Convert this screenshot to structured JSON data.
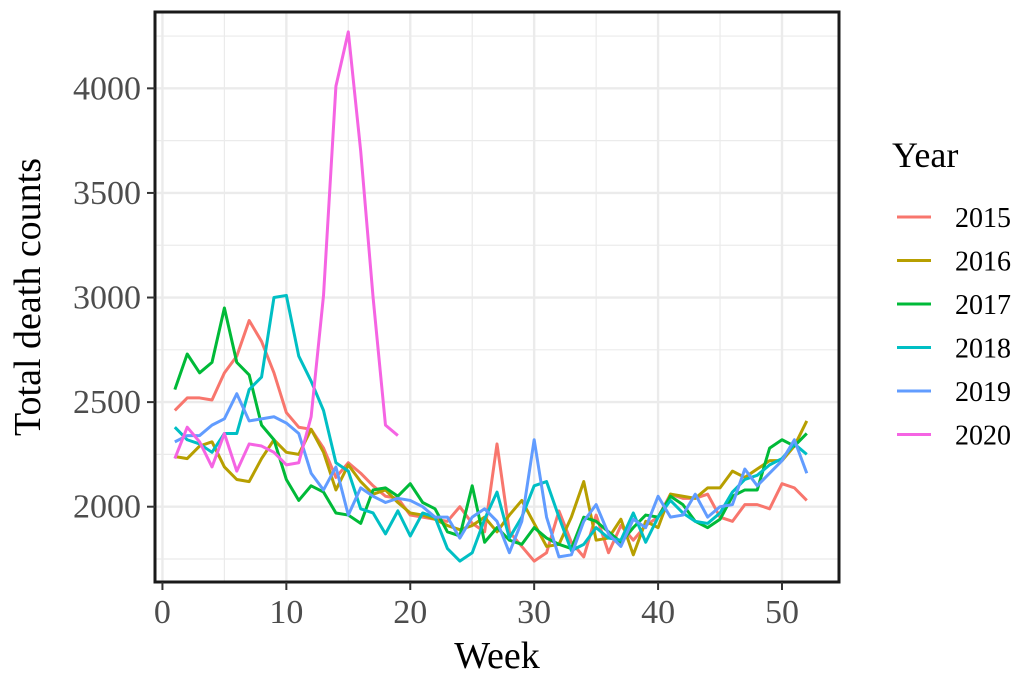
{
  "chart_data": {
    "type": "line",
    "xlabel": "Week",
    "ylabel": "Total death counts",
    "xlim": [
      -0.6,
      54.6
    ],
    "ylim": [
      1640,
      4365
    ],
    "xticks": [
      0,
      10,
      20,
      30,
      40,
      50
    ],
    "yticks": [
      2000,
      2500,
      3000,
      3500,
      4000
    ],
    "grid": true,
    "legend": {
      "title": "Year",
      "position": "right"
    },
    "series": [
      {
        "name": "2015",
        "color": "#F8766D",
        "x": [
          1,
          2,
          3,
          4,
          5,
          6,
          7,
          8,
          9,
          10,
          11,
          12,
          13,
          14,
          15,
          16,
          17,
          18,
          19,
          20,
          21,
          22,
          23,
          24,
          25,
          26,
          27,
          28,
          29,
          30,
          31,
          32,
          33,
          34,
          35,
          36,
          37,
          38,
          39,
          40,
          41,
          42,
          43,
          44,
          45,
          46,
          47,
          48,
          49,
          50,
          51,
          52
        ],
        "y": [
          2460,
          2520,
          2520,
          2510,
          2640,
          2720,
          2890,
          2790,
          2640,
          2450,
          2380,
          2370,
          2280,
          2140,
          2210,
          2160,
          2100,
          2050,
          2040,
          1960,
          1950,
          1940,
          1930,
          2000,
          1920,
          1880,
          2300,
          1880,
          1810,
          1740,
          1780,
          1980,
          1830,
          1760,
          1960,
          1780,
          1910,
          1840,
          1910,
          1950,
          2060,
          2040,
          2040,
          2060,
          1950,
          1930,
          2010,
          2010,
          1990,
          2110,
          2090,
          2030
        ]
      },
      {
        "name": "2016",
        "color": "#B79F00",
        "x": [
          1,
          2,
          3,
          4,
          5,
          6,
          7,
          8,
          9,
          10,
          11,
          12,
          13,
          14,
          15,
          16,
          17,
          18,
          19,
          20,
          21,
          22,
          23,
          24,
          25,
          26,
          27,
          28,
          29,
          30,
          31,
          32,
          33,
          34,
          35,
          36,
          37,
          38,
          39,
          40,
          41,
          42,
          43,
          44,
          45,
          46,
          47,
          48,
          49,
          50,
          51,
          52
        ],
        "y": [
          2240,
          2230,
          2290,
          2310,
          2190,
          2130,
          2120,
          2230,
          2320,
          2260,
          2250,
          2370,
          2260,
          2080,
          2200,
          2120,
          2060,
          2080,
          2020,
          1970,
          1960,
          1940,
          1910,
          1890,
          1910,
          1950,
          1880,
          1960,
          2030,
          1920,
          1810,
          1820,
          1950,
          2120,
          1840,
          1850,
          1940,
          1770,
          1930,
          1900,
          2060,
          2050,
          2040,
          2090,
          2090,
          2170,
          2140,
          2180,
          2220,
          2220,
          2290,
          2410
        ]
      },
      {
        "name": "2017",
        "color": "#00BA38",
        "x": [
          1,
          2,
          3,
          4,
          5,
          6,
          7,
          8,
          9,
          10,
          11,
          12,
          13,
          14,
          15,
          16,
          17,
          18,
          19,
          20,
          21,
          22,
          23,
          24,
          25,
          26,
          27,
          28,
          29,
          30,
          31,
          32,
          33,
          34,
          35,
          36,
          37,
          38,
          39,
          40,
          41,
          42,
          43,
          44,
          45,
          46,
          47,
          48,
          49,
          50,
          51,
          52
        ],
        "y": [
          2560,
          2730,
          2640,
          2690,
          2950,
          2690,
          2630,
          2390,
          2320,
          2130,
          2030,
          2100,
          2070,
          1970,
          1960,
          1920,
          2080,
          2090,
          2050,
          2110,
          2020,
          1990,
          1880,
          1860,
          2100,
          1830,
          1900,
          1840,
          1820,
          1900,
          1850,
          1820,
          1800,
          1950,
          1930,
          1880,
          1830,
          1900,
          1960,
          1950,
          2050,
          2010,
          1930,
          1900,
          1940,
          2050,
          2080,
          2080,
          2280,
          2320,
          2290,
          2350
        ]
      },
      {
        "name": "2018",
        "color": "#00BFC4",
        "x": [
          1,
          2,
          3,
          4,
          5,
          6,
          7,
          8,
          9,
          10,
          11,
          12,
          13,
          14,
          15,
          16,
          17,
          18,
          19,
          20,
          21,
          22,
          23,
          24,
          25,
          26,
          27,
          28,
          29,
          30,
          31,
          32,
          33,
          34,
          35,
          36,
          37,
          38,
          39,
          40,
          41,
          42,
          43,
          44,
          45,
          46,
          47,
          48,
          49,
          50,
          51,
          52
        ],
        "y": [
          2380,
          2320,
          2300,
          2260,
          2350,
          2350,
          2560,
          2620,
          3000,
          3010,
          2720,
          2600,
          2460,
          2210,
          2170,
          1990,
          1970,
          1870,
          1980,
          1860,
          1970,
          1950,
          1800,
          1740,
          1780,
          1940,
          2070,
          1850,
          1950,
          2100,
          2120,
          1950,
          1790,
          1820,
          1900,
          1850,
          1840,
          1970,
          1830,
          1950,
          2030,
          1970,
          1930,
          1920,
          1970,
          2070,
          2130,
          2150,
          2200,
          2230,
          2300,
          2250
        ]
      },
      {
        "name": "2019",
        "color": "#619CFF",
        "x": [
          1,
          2,
          3,
          4,
          5,
          6,
          7,
          8,
          9,
          10,
          11,
          12,
          13,
          14,
          15,
          16,
          17,
          18,
          19,
          20,
          21,
          22,
          23,
          24,
          25,
          26,
          27,
          28,
          29,
          30,
          31,
          32,
          33,
          34,
          35,
          36,
          37,
          38,
          39,
          40,
          41,
          42,
          43,
          44,
          45,
          46,
          47,
          48,
          49,
          50,
          51,
          52
        ],
        "y": [
          2310,
          2340,
          2340,
          2390,
          2420,
          2540,
          2410,
          2420,
          2430,
          2400,
          2350,
          2160,
          2080,
          2190,
          1960,
          2090,
          2050,
          2020,
          2040,
          2030,
          2000,
          1950,
          1950,
          1850,
          1950,
          1990,
          1930,
          1780,
          1930,
          2320,
          1950,
          1760,
          1770,
          1930,
          2010,
          1870,
          1810,
          1940,
          1900,
          2050,
          1950,
          1960,
          2060,
          1950,
          2000,
          2010,
          2180,
          2100,
          2160,
          2220,
          2320,
          2160
        ]
      },
      {
        "name": "2020",
        "color": "#F564E3",
        "x": [
          1,
          2,
          3,
          4,
          5,
          6,
          7,
          8,
          9,
          10,
          11,
          12,
          13,
          14,
          15,
          16,
          17,
          18,
          19
        ],
        "y": [
          2230,
          2380,
          2310,
          2190,
          2350,
          2170,
          2300,
          2290,
          2260,
          2200,
          2210,
          2430,
          3010,
          4010,
          4270,
          3700,
          3000,
          2390,
          2340
        ]
      }
    ]
  }
}
